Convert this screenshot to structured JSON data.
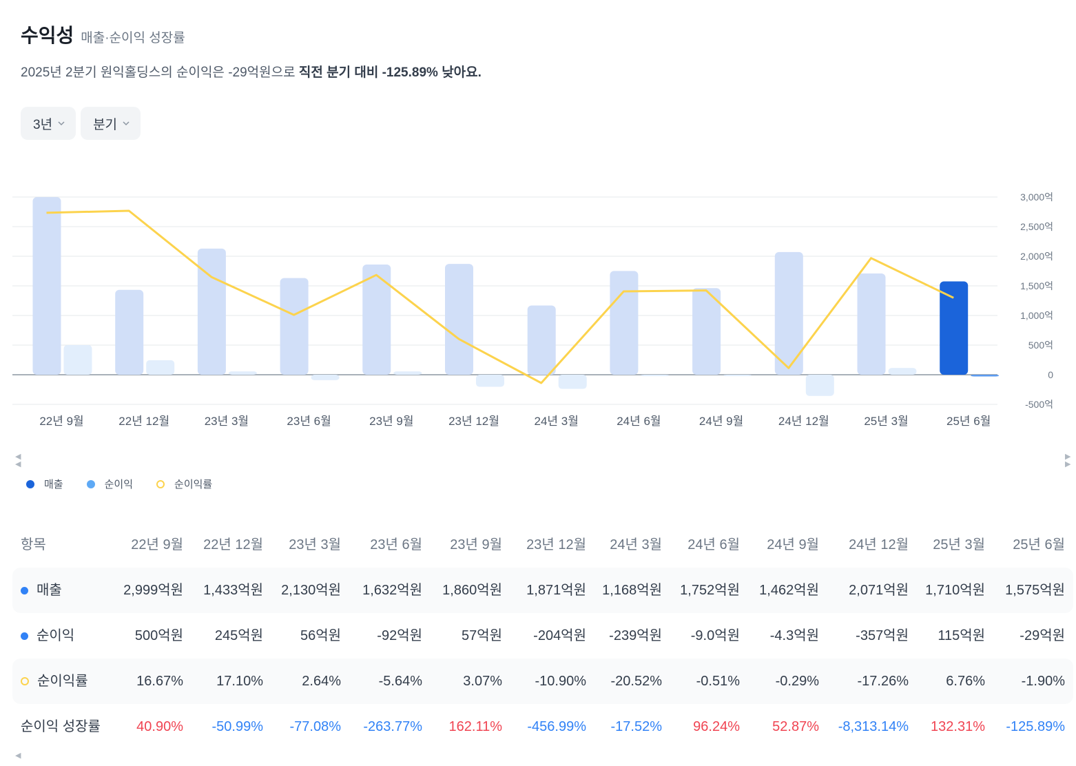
{
  "header": {
    "title": "수익성",
    "subtitle": "매출·순이익 성장률",
    "summary_prefix": "2025년 2분기 원익홀딩스의 순이익은 -29억원으로 ",
    "summary_bold": "직전 분기 대비 -125.89% 낮아요."
  },
  "filters": {
    "period": "3년",
    "unit": "분기"
  },
  "legend": {
    "revenue": "매출",
    "net_income": "순이익",
    "net_margin": "순이익률"
  },
  "colors": {
    "revenue_bar": "#d1dff8",
    "revenue_bar_highlight": "#1b64da",
    "net_income_bar": "#e2eefc",
    "net_income_bar_highlight": "#5b9bf0",
    "margin_line": "#fcd34d",
    "positive": "#f04452",
    "negative": "#3182f6"
  },
  "chart_data": {
    "type": "bar",
    "categories": [
      "22년 9월",
      "22년 12월",
      "23년 3월",
      "23년 6월",
      "23년 9월",
      "23년 12월",
      "24년 3월",
      "24년 6월",
      "24년 9월",
      "24년 12월",
      "25년 3월",
      "25년 6월"
    ],
    "series": [
      {
        "name": "매출",
        "unit": "억원",
        "values": [
          2999,
          1433,
          2130,
          1632,
          1860,
          1871,
          1168,
          1752,
          1462,
          2071,
          1710,
          1575
        ]
      },
      {
        "name": "순이익",
        "unit": "억원",
        "values": [
          500,
          245,
          56,
          -92,
          57,
          -204,
          -239,
          -9.0,
          -4.3,
          -357,
          115,
          -29
        ]
      },
      {
        "name": "순이익률",
        "type": "line",
        "unit": "%",
        "values": [
          16.67,
          17.1,
          2.64,
          -5.64,
          3.07,
          -10.9,
          -20.52,
          -0.51,
          -0.29,
          -17.26,
          6.76,
          -1.9
        ]
      }
    ],
    "y_ticks": [
      "3,000억",
      "2,500억",
      "2,000억",
      "1,500억",
      "1,000억",
      "500억",
      "0",
      "-500억"
    ],
    "ylim": [
      -500,
      3000
    ],
    "highlight_index": 11
  },
  "table": {
    "header_label": "항목",
    "columns": [
      "22년 9월",
      "22년 12월",
      "23년 3월",
      "23년 6월",
      "23년 9월",
      "23년 12월",
      "24년 3월",
      "24년 6월",
      "24년 9월",
      "24년 12월",
      "25년 3월",
      "25년 6월"
    ],
    "rows": [
      {
        "label": "매출",
        "marker": "dot",
        "values": [
          "2,999억원",
          "1,433억원",
          "2,130억원",
          "1,632억원",
          "1,860억원",
          "1,871억원",
          "1,168억원",
          "1,752억원",
          "1,462억원",
          "2,071억원",
          "1,710억원",
          "1,575억원"
        ]
      },
      {
        "label": "순이익",
        "marker": "dot",
        "values": [
          "500억원",
          "245억원",
          "56억원",
          "-92억원",
          "57억원",
          "-204억원",
          "-239억원",
          "-9.0억원",
          "-4.3억원",
          "-357억원",
          "115억원",
          "-29억원"
        ]
      },
      {
        "label": "순이익률",
        "marker": "ring",
        "values": [
          "16.67%",
          "17.10%",
          "2.64%",
          "-5.64%",
          "3.07%",
          "-10.90%",
          "-20.52%",
          "-0.51%",
          "-0.29%",
          "-17.26%",
          "6.76%",
          "-1.90%"
        ]
      },
      {
        "label": "순이익 성장률",
        "marker": "none",
        "values": [
          "40.90%",
          "-50.99%",
          "-77.08%",
          "-263.77%",
          "162.11%",
          "-456.99%",
          "-17.52%",
          "96.24%",
          "52.87%",
          "-8,313.14%",
          "132.31%",
          "-125.89%"
        ]
      }
    ]
  }
}
